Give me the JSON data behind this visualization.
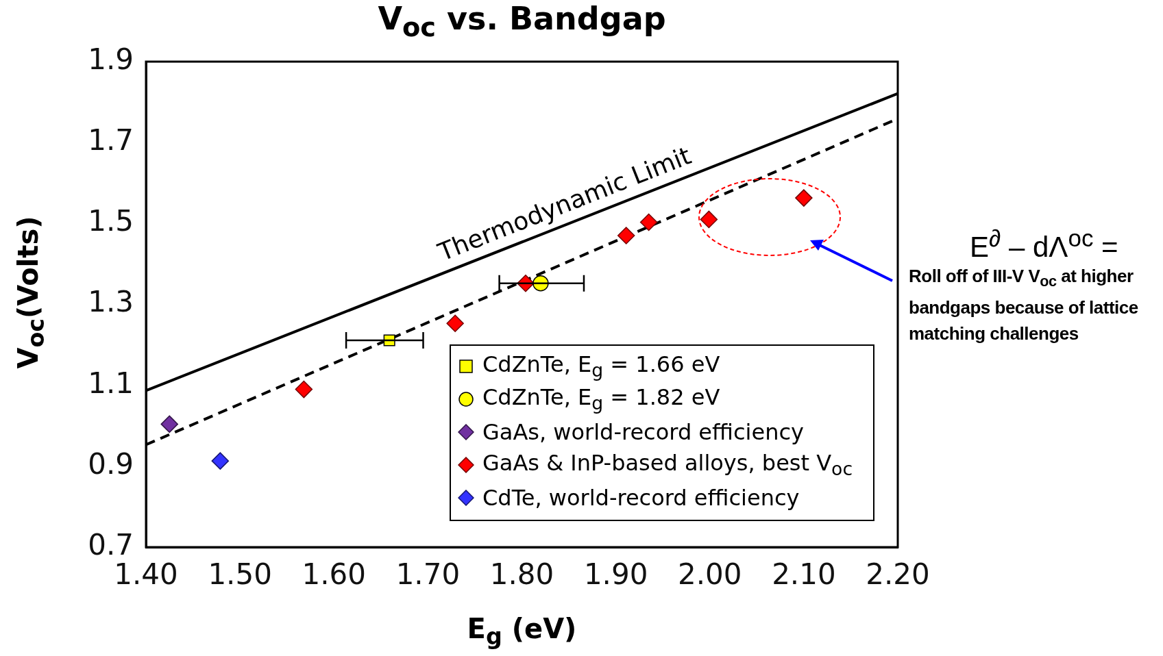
{
  "chart_data": {
    "type": "scatter",
    "title": "V$_{oc}$ vs. Bandgap",
    "xlabel": "E$_{g}$ (eV)",
    "ylabel": "V$_{oc}$(Volts)",
    "xlim": [
      1.4,
      2.2
    ],
    "xticks": [
      {
        "value": 1.4,
        "label": "1.40"
      },
      {
        "value": 1.5,
        "label": "1.50"
      },
      {
        "value": 1.6,
        "label": "1.60"
      },
      {
        "value": 1.7,
        "label": "1.70"
      },
      {
        "value": 1.8,
        "label": "1.80"
      },
      {
        "value": 1.9,
        "label": "1.90"
      },
      {
        "value": 2.0,
        "label": "2.00"
      },
      {
        "value": 2.1,
        "label": "2.10"
      },
      {
        "value": 2.2,
        "label": "2.20"
      }
    ],
    "ylim": [
      0.7,
      1.9
    ],
    "yticks": [
      0.7,
      0.9,
      1.1,
      1.3,
      1.5,
      1.7,
      1.9
    ],
    "grid": false,
    "legend": "bottom right",
    "series": [
      {
        "name": "Thermodynamic Limit",
        "type": "line",
        "color": "#000000",
        "line_style": "solid",
        "marker": "none",
        "x": [
          1.4,
          2.2
        ],
        "values": [
          1.087,
          1.821
        ]
      },
      {
        "type": "line",
        "color": "#000000",
        "line_style": "dashed",
        "marker": "none",
        "x": [
          1.4,
          2.2
        ],
        "values": [
          0.953,
          1.759
        ]
      },
      {
        "name": "CdZnTe, E$_{g}$ = 1.66 eV",
        "color": "#ffff00",
        "marker": "square",
        "x": [
          1.659
        ],
        "values": [
          1.211
        ],
        "xerrors": [
          [
            1.613,
            1.695
          ]
        ]
      },
      {
        "name": "CdZnTe, E$_{g}$ = 1.82 eV",
        "color": "#ffff00",
        "marker": "circle",
        "x": [
          1.82
        ],
        "values": [
          1.352
        ],
        "xerrors": [
          [
            1.776,
            1.866
          ]
        ]
      },
      {
        "name": "GaAs, world-record efficiency",
        "color": "#7030a0",
        "marker": "diamond",
        "x": [
          1.425
        ],
        "values": [
          1.004
        ]
      },
      {
        "name": "GaAs & InP-based alloys, best V$_{oc}$",
        "color": "#ff0000",
        "marker": "diamond",
        "x": [
          1.568,
          1.729,
          1.804,
          1.911,
          1.935,
          1.999,
          2.1
        ],
        "values": [
          1.09,
          1.253,
          1.352,
          1.47,
          1.503,
          1.51,
          1.563
        ]
      },
      {
        "name": "CdTe, world-record efficiency",
        "color": "#3333ff",
        "marker": "diamond",
        "x": [
          1.479
        ],
        "values": [
          0.913
        ]
      }
    ],
    "annotations": [
      "E$^{∂}$ – dΛ$^{oc}$ =",
      "Roll off of III-V V$_{oc}$ at higher bandgaps because of lattice matching challenges"
    ]
  }
}
